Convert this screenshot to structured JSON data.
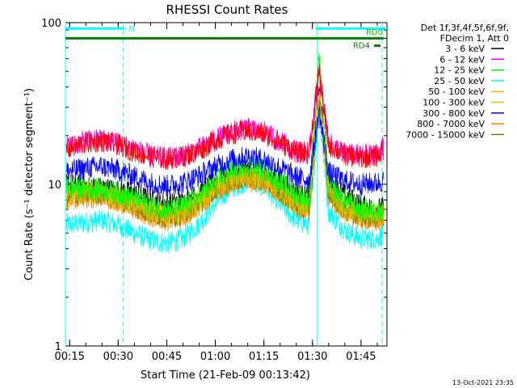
{
  "chart_data": {
    "type": "line",
    "title": "RHESSI Count Rates",
    "xlabel": "Start Time (21-Feb-09 00:13:42)",
    "ylabel": "Count Rate (s⁻¹ detector segment⁻¹)",
    "y_scale": "log",
    "ylim": [
      1,
      100
    ],
    "xlim": [
      "00:13:42",
      "01:53:00"
    ],
    "y_ticks": [
      "1",
      "10",
      "100"
    ],
    "x_ticks": [
      "00:15",
      "00:30",
      "00:45",
      "01:00",
      "01:15",
      "01:30",
      "01:45"
    ],
    "legend_title": [
      "Det 1f,3f,4f,5f,6f,9f,",
      "FDecim 1, Att 0"
    ],
    "legend_position": "right",
    "series": [
      {
        "name": "3 - 6 keV",
        "color": "#000000",
        "x": [
          "00:14",
          "00:20",
          "00:25",
          "00:30",
          "00:35",
          "00:40",
          "00:45",
          "00:50",
          "00:55",
          "01:00",
          "01:05",
          "01:10",
          "01:15",
          "01:20",
          "01:25",
          "01:29",
          "01:32",
          "01:35",
          "01:40",
          "01:45",
          "01:50",
          "01:52"
        ],
        "y": [
          10.0,
          9.7,
          9.5,
          9.2,
          8.8,
          8.0,
          7.6,
          7.8,
          8.8,
          10.4,
          11.5,
          12.2,
          11.6,
          10.2,
          8.8,
          8.4,
          40,
          10.5,
          8.6,
          7.4,
          7.0,
          7.2
        ]
      },
      {
        "name": "6 - 12 keV",
        "color": "#ff00ff",
        "x": [
          "00:14",
          "00:20",
          "00:25",
          "00:30",
          "00:35",
          "00:40",
          "00:45",
          "00:50",
          "00:55",
          "01:00",
          "01:05",
          "01:10",
          "01:15",
          "01:20",
          "01:25",
          "01:29",
          "01:32",
          "01:35",
          "01:40",
          "01:45",
          "01:50",
          "01:52"
        ],
        "y": [
          17,
          18.5,
          19,
          18,
          16.5,
          15,
          14.5,
          15,
          16.5,
          19,
          21,
          22,
          21,
          18.5,
          16,
          15.8,
          48,
          18,
          15.5,
          15,
          15.5,
          17
        ]
      },
      {
        "name": "12 - 25 keV",
        "color": "#00ff00",
        "x": [
          "00:14",
          "00:20",
          "00:25",
          "00:30",
          "00:35",
          "00:40",
          "00:45",
          "00:50",
          "00:55",
          "01:00",
          "01:05",
          "01:10",
          "01:15",
          "01:20",
          "01:25",
          "01:29",
          "01:32",
          "01:35",
          "01:40",
          "01:45",
          "01:50",
          "01:52"
        ],
        "y": [
          9.6,
          9.4,
          9.3,
          8.8,
          8.2,
          7.4,
          7.0,
          7.3,
          8.4,
          10.3,
          12.2,
          13.2,
          12.4,
          10.4,
          8.6,
          8.0,
          64,
          10.0,
          8.0,
          7.0,
          6.8,
          7.0
        ]
      },
      {
        "name": "25 - 50 keV",
        "color": "#00ffff",
        "x": [
          "00:14",
          "00:20",
          "00:25",
          "00:30",
          "00:35",
          "00:40",
          "00:45",
          "00:50",
          "00:55",
          "01:00",
          "01:05",
          "01:10",
          "01:15",
          "01:20",
          "01:25",
          "01:29",
          "01:32",
          "01:35",
          "01:40",
          "01:45",
          "01:50",
          "01:52"
        ],
        "y": [
          5.6,
          5.8,
          6.0,
          5.6,
          5.0,
          4.5,
          4.3,
          4.6,
          5.7,
          7.6,
          9.5,
          10.5,
          9.7,
          7.6,
          6.0,
          5.6,
          30,
          6.8,
          5.2,
          4.6,
          4.6,
          5.0
        ]
      },
      {
        "name": "50 - 100 keV",
        "color": "#ffb000",
        "x": [
          "00:14",
          "00:20",
          "00:25",
          "00:30",
          "00:35",
          "00:40",
          "00:45",
          "00:50",
          "00:55",
          "01:00",
          "01:05",
          "01:10",
          "01:15",
          "01:20",
          "01:25",
          "01:29",
          "01:32",
          "01:35",
          "01:40",
          "01:45",
          "01:50",
          "01:52"
        ],
        "y": [
          8.3,
          8.6,
          8.7,
          8.0,
          7.3,
          6.5,
          6.2,
          6.5,
          7.5,
          9.2,
          10.5,
          11.0,
          10.4,
          8.9,
          7.4,
          7.0,
          36,
          8.6,
          6.9,
          6.3,
          6.2,
          6.4
        ]
      },
      {
        "name": "100 - 300 keV",
        "color": "#e0c000",
        "x": [
          "00:14",
          "00:20",
          "00:25",
          "00:30",
          "00:35",
          "00:40",
          "00:45",
          "00:50",
          "00:55",
          "01:00",
          "01:05",
          "01:10",
          "01:15",
          "01:20",
          "01:25",
          "01:29",
          "01:32",
          "01:35",
          "01:40",
          "01:45",
          "01:50",
          "01:52"
        ],
        "y": [
          8.6,
          8.9,
          9.0,
          8.3,
          7.6,
          6.8,
          6.5,
          6.8,
          7.8,
          9.6,
          10.9,
          11.4,
          10.8,
          9.2,
          7.7,
          7.3,
          38,
          8.9,
          7.1,
          6.5,
          6.4,
          6.6
        ]
      },
      {
        "name": "300 - 800 keV",
        "color": "#0000ff",
        "x": [
          "00:14",
          "00:20",
          "00:25",
          "00:30",
          "00:35",
          "00:40",
          "00:45",
          "00:50",
          "00:55",
          "01:00",
          "01:05",
          "01:10",
          "01:15",
          "01:20",
          "01:25",
          "01:29",
          "01:32",
          "01:35",
          "01:40",
          "01:45",
          "01:50",
          "01:52"
        ],
        "y": [
          12.0,
          12.6,
          12.9,
          12.2,
          11.2,
          10.2,
          9.8,
          10.2,
          11.3,
          12.9,
          14.2,
          14.9,
          14.2,
          12.6,
          11.1,
          10.6,
          28,
          11.8,
          10.5,
          10.0,
          10.2,
          10.5
        ]
      },
      {
        "name": "800 - 7000 keV",
        "color": "#ff8000",
        "x": [
          "00:14",
          "00:20",
          "00:25",
          "00:30",
          "00:35",
          "00:40",
          "00:45",
          "00:50",
          "00:55",
          "01:00",
          "01:05",
          "01:10",
          "01:15",
          "01:20",
          "01:25",
          "01:29",
          "01:32",
          "01:35",
          "01:40",
          "01:45",
          "01:50",
          "01:52"
        ],
        "y": [
          8.0,
          8.3,
          8.4,
          7.8,
          7.1,
          6.3,
          6.0,
          6.3,
          7.3,
          9.0,
          10.3,
          10.8,
          10.2,
          8.7,
          7.2,
          6.8,
          34,
          8.4,
          6.7,
          6.1,
          6.0,
          6.2
        ]
      },
      {
        "name": "7000 - 15000 keV",
        "color": "#808000",
        "x": [
          "00:14",
          "00:20",
          "00:25",
          "00:30",
          "00:35",
          "00:40",
          "00:45",
          "00:50",
          "00:55",
          "01:00",
          "01:05",
          "01:10",
          "01:15",
          "01:20",
          "01:25",
          "01:29",
          "01:32",
          "01:35",
          "01:40",
          "01:45",
          "01:50",
          "01:52"
        ],
        "y": [
          8.4,
          8.7,
          8.8,
          8.1,
          7.4,
          6.6,
          6.3,
          6.6,
          7.6,
          9.3,
          10.6,
          11.1,
          10.5,
          9.0,
          7.5,
          7.1,
          37,
          8.7,
          6.9,
          6.3,
          6.2,
          6.4
        ]
      },
      {
        "name": "",
        "color": "#ff0000",
        "x": [
          "00:14",
          "00:20",
          "00:25",
          "00:30",
          "00:35",
          "00:40",
          "00:45",
          "00:50",
          "00:55",
          "01:00",
          "01:05",
          "01:10",
          "01:15",
          "01:20",
          "01:25",
          "01:29",
          "01:32",
          "01:35",
          "01:40",
          "01:45",
          "01:50",
          "01:52"
        ],
        "y": [
          16.5,
          18,
          18.5,
          17.5,
          16,
          14.8,
          14.3,
          14.8,
          16.2,
          18.6,
          20.5,
          21.5,
          20.5,
          18.2,
          15.8,
          15.5,
          52,
          17.5,
          15.2,
          14.6,
          15.0,
          16.2
        ]
      }
    ],
    "annotations": {
      "flag_N": {
        "label": "N",
        "color": "#00ffff",
        "x_start": "00:13:42",
        "x_end": "00:32:00",
        "level": 92
      },
      "flag_RD0": {
        "label": "RD0",
        "color": "#00ffff",
        "x_start": "01:31:00",
        "x_end": "01:53:00",
        "level": 92
      },
      "flag_RD0_green": {
        "color": "#008000",
        "x_start": "00:13:42",
        "x_end": "01:52:00",
        "level": 80
      },
      "flag_RD4": {
        "label": "RD4",
        "color": "#008000",
        "x_start": "01:49:00",
        "x_end": "01:51:00",
        "level": 72
      },
      "vertical_solid": [
        "00:13:42",
        "01:31:30"
      ],
      "vertical_dashed": [
        "00:31:30",
        "01:51:30"
      ]
    },
    "footer_date": "13-Oct-2021 23:35"
  }
}
